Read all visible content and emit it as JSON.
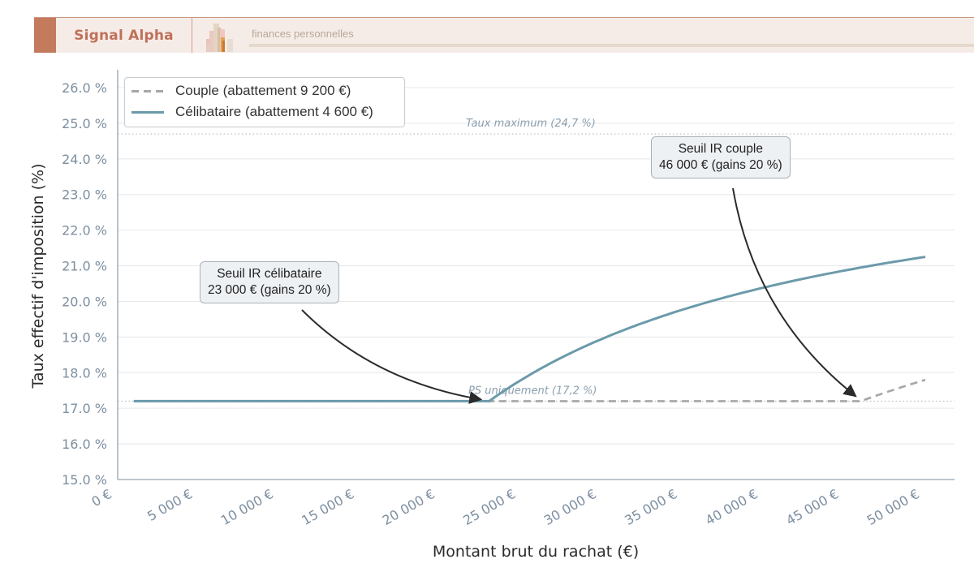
{
  "header": {
    "brand": "Signal Alpha",
    "subtitle": "finances personnelles",
    "accent_color": "#c47a5c",
    "logo_icon": "bar-chart-logo-icon"
  },
  "chart_data": {
    "type": "line",
    "title": "",
    "xlabel": "Montant brut du rachat (€)",
    "ylabel": "Taux effectif d'imposition (%)",
    "xlim": [
      0,
      50000
    ],
    "ylim": [
      15.0,
      26.0
    ],
    "grid": true,
    "legend_position": "upper left",
    "x_ticks": [
      "0 €",
      "5 000 €",
      "10 000 €",
      "15 000 €",
      "20 000 €",
      "25 000 €",
      "30 000 €",
      "35 000 €",
      "40 000 €",
      "45 000 €",
      "50 000 €"
    ],
    "y_ticks": [
      "15.0 %",
      "16.0 %",
      "17.0 %",
      "18.0 %",
      "19.0 %",
      "20.0 %",
      "21.0 %",
      "22.0 %",
      "23.0 %",
      "24.0 %",
      "25.0 %",
      "26.0 %"
    ],
    "x": [
      1000,
      5000,
      10000,
      15000,
      20000,
      23000,
      25000,
      27500,
      30000,
      32500,
      35000,
      37500,
      40000,
      42500,
      45000,
      46000,
      47500,
      50000
    ],
    "series": [
      {
        "name": "Couple (abattement 9 200 €)",
        "color": "#a6a6a6",
        "style": "dashed",
        "values": [
          17.2,
          17.2,
          17.2,
          17.2,
          17.2,
          17.2,
          17.2,
          17.2,
          17.2,
          17.2,
          17.2,
          17.2,
          17.2,
          17.2,
          17.2,
          17.2,
          17.44,
          17.8
        ]
      },
      {
        "name": "Célibataire (abattement 4 600 €)",
        "color": "#6b9aaa",
        "style": "solid",
        "values": [
          17.2,
          17.2,
          17.2,
          17.2,
          17.2,
          17.2,
          17.6,
          18.19,
          18.65,
          19.03,
          19.33,
          19.6,
          19.81,
          20.0,
          20.17,
          20.2,
          20.3,
          21.25
        ]
      }
    ],
    "reference_lines": [
      {
        "y": 24.7,
        "label": "Taux maximum (24,7 %)",
        "style": "dotted"
      },
      {
        "y": 17.2,
        "label": "PS uniquement (17,2 %)",
        "style": "dotted"
      }
    ],
    "annotations": [
      {
        "line1": "Seuil IR célibataire",
        "line2": "23 000 € (gains 20 %)",
        "target_x": 23000,
        "target_y": 17.2
      },
      {
        "line1": "Seuil IR couple",
        "line2": "46 000 € (gains 20 %)",
        "target_x": 46000,
        "target_y": 17.2
      }
    ]
  }
}
